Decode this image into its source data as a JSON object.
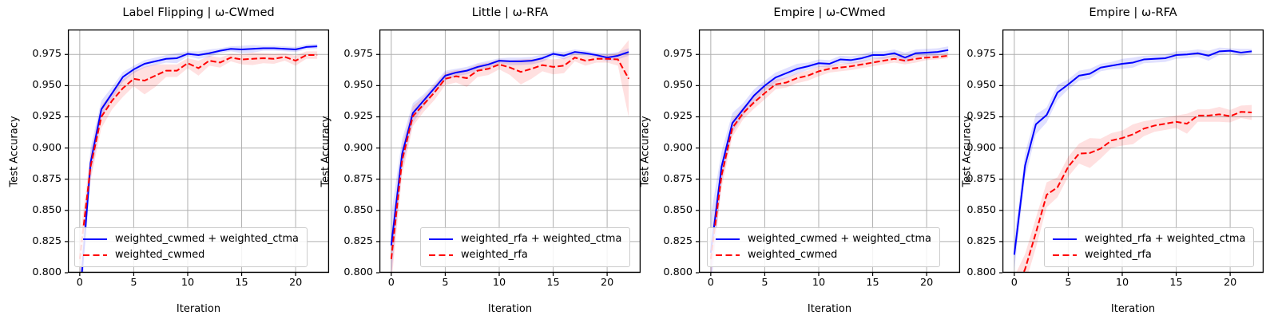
{
  "colors": {
    "blue": "#0000ff",
    "red": "#ff0000",
    "blue_band": "rgba(0,0,255,0.12)",
    "red_band": "rgba(255,0,0,0.12)",
    "grid": "#b0b0b0",
    "spine": "#000000",
    "background": "#ffffff"
  },
  "chart_data": [
    {
      "type": "line",
      "title": "Label Flipping | ω-CWmed",
      "xlabel": "Iteration",
      "ylabel": "Test Accuracy",
      "xlim": [
        -1.1,
        23.1
      ],
      "ylim": [
        0.8,
        0.995
      ],
      "xticks": [
        0,
        5,
        10,
        15,
        20
      ],
      "ytick_labels": [
        "0.800",
        "0.825",
        "0.850",
        "0.875",
        "0.900",
        "0.925",
        "0.950",
        "0.975"
      ],
      "grid": true,
      "legend_position": "lower left",
      "x": [
        0,
        1,
        2,
        3,
        4,
        5,
        6,
        7,
        8,
        9,
        10,
        11,
        12,
        13,
        14,
        15,
        16,
        17,
        18,
        19,
        20,
        21,
        22
      ],
      "series": [
        {
          "name": "weighted_cwmed + weighted_ctma",
          "color": "blue",
          "style": "solid",
          "values": [
            0.778,
            0.888,
            0.931,
            0.944,
            0.957,
            0.963,
            0.9675,
            0.9695,
            0.9715,
            0.972,
            0.9755,
            0.9745,
            0.976,
            0.978,
            0.9795,
            0.979,
            0.9795,
            0.98,
            0.98,
            0.9795,
            0.979,
            0.981,
            0.9815
          ],
          "band": [
            0.02,
            0.012,
            0.007,
            0.005,
            0.004,
            0.003,
            0.003,
            0.003,
            0.003,
            0.004,
            0.002,
            0.003,
            0.003,
            0.002,
            0.002,
            0.003,
            0.003,
            0.002,
            0.002,
            0.002,
            0.002,
            0.002,
            0.002
          ]
        },
        {
          "name": "weighted_cwmed",
          "color": "red",
          "style": "dashed",
          "values": [
            0.811,
            0.885,
            0.925,
            0.938,
            0.948,
            0.9555,
            0.954,
            0.958,
            0.962,
            0.962,
            0.968,
            0.964,
            0.97,
            0.9685,
            0.9725,
            0.971,
            0.9715,
            0.972,
            0.9715,
            0.973,
            0.97,
            0.9745,
            0.9745
          ],
          "band": [
            0.015,
            0.011,
            0.009,
            0.007,
            0.007,
            0.006,
            0.011,
            0.009,
            0.005,
            0.005,
            0.004,
            0.006,
            0.004,
            0.004,
            0.003,
            0.004,
            0.005,
            0.004,
            0.004,
            0.003,
            0.004,
            0.003,
            0.003
          ]
        }
      ]
    },
    {
      "type": "line",
      "title": "Little | ω-RFA",
      "xlabel": "Iteration",
      "ylabel": "Test Accuracy",
      "xlim": [
        -1.1,
        23.1
      ],
      "ylim": [
        0.8,
        0.995
      ],
      "xticks": [
        0,
        5,
        10,
        15,
        20
      ],
      "ytick_labels": [
        "0.800",
        "0.825",
        "0.850",
        "0.875",
        "0.900",
        "0.925",
        "0.950",
        "0.975"
      ],
      "grid": true,
      "legend_position": "lower left",
      "x": [
        0,
        1,
        2,
        3,
        4,
        5,
        6,
        7,
        8,
        9,
        10,
        11,
        12,
        13,
        14,
        15,
        16,
        17,
        18,
        19,
        20,
        21,
        22
      ],
      "series": [
        {
          "name": "weighted_rfa + weighted_ctma",
          "color": "blue",
          "style": "solid",
          "values": [
            0.822,
            0.895,
            0.928,
            0.938,
            0.948,
            0.958,
            0.9605,
            0.962,
            0.965,
            0.967,
            0.97,
            0.9695,
            0.9695,
            0.97,
            0.972,
            0.9755,
            0.974,
            0.977,
            0.976,
            0.9745,
            0.9725,
            0.974,
            0.977
          ],
          "band": [
            0.025,
            0.012,
            0.008,
            0.005,
            0.004,
            0.004,
            0.003,
            0.003,
            0.003,
            0.003,
            0.002,
            0.003,
            0.003,
            0.003,
            0.003,
            0.002,
            0.003,
            0.002,
            0.002,
            0.002,
            0.003,
            0.003,
            0.003
          ]
        },
        {
          "name": "weighted_rfa",
          "color": "red",
          "style": "dashed",
          "values": [
            0.811,
            0.89,
            0.9255,
            0.935,
            0.9445,
            0.9555,
            0.9575,
            0.956,
            0.962,
            0.9635,
            0.967,
            0.9645,
            0.961,
            0.9635,
            0.9665,
            0.965,
            0.966,
            0.9725,
            0.97,
            0.9715,
            0.9715,
            0.971,
            0.9555
          ],
          "band": [
            0.02,
            0.012,
            0.008,
            0.006,
            0.006,
            0.005,
            0.005,
            0.007,
            0.005,
            0.005,
            0.004,
            0.006,
            0.01,
            0.008,
            0.005,
            0.006,
            0.006,
            0.003,
            0.004,
            0.003,
            0.003,
            0.005,
            0.031
          ]
        }
      ]
    },
    {
      "type": "line",
      "title": "Empire | ω-CWmed",
      "xlabel": "Iteration",
      "ylabel": "Test Accuracy",
      "xlim": [
        -1.1,
        23.1
      ],
      "ylim": [
        0.8,
        0.995
      ],
      "xticks": [
        0,
        5,
        10,
        15,
        20
      ],
      "ytick_labels": [
        "0.800",
        "0.825",
        "0.850",
        "0.875",
        "0.900",
        "0.925",
        "0.950",
        "0.975"
      ],
      "grid": true,
      "legend_position": "lower left",
      "x": [
        0,
        1,
        2,
        3,
        4,
        5,
        6,
        7,
        8,
        9,
        10,
        11,
        12,
        13,
        14,
        15,
        16,
        17,
        18,
        19,
        20,
        21,
        22
      ],
      "series": [
        {
          "name": "weighted_cwmed + weighted_ctma",
          "color": "blue",
          "style": "solid",
          "values": [
            0.816,
            0.885,
            0.92,
            0.931,
            0.942,
            0.95,
            0.9565,
            0.96,
            0.9635,
            0.9655,
            0.968,
            0.9675,
            0.971,
            0.9705,
            0.972,
            0.9745,
            0.9745,
            0.976,
            0.9725,
            0.976,
            0.9765,
            0.977,
            0.9785
          ],
          "band": [
            0.03,
            0.012,
            0.008,
            0.005,
            0.005,
            0.004,
            0.004,
            0.004,
            0.004,
            0.003,
            0.003,
            0.003,
            0.003,
            0.003,
            0.003,
            0.003,
            0.003,
            0.003,
            0.004,
            0.003,
            0.003,
            0.003,
            0.003
          ]
        },
        {
          "name": "weighted_cwmed",
          "color": "red",
          "style": "dashed",
          "values": [
            0.811,
            0.878,
            0.916,
            0.928,
            0.9365,
            0.944,
            0.951,
            0.9525,
            0.956,
            0.958,
            0.9615,
            0.9635,
            0.9645,
            0.9655,
            0.967,
            0.9685,
            0.97,
            0.9715,
            0.97,
            0.9715,
            0.9725,
            0.973,
            0.974
          ],
          "band": [
            0.015,
            0.01,
            0.007,
            0.005,
            0.005,
            0.005,
            0.004,
            0.004,
            0.004,
            0.004,
            0.004,
            0.003,
            0.003,
            0.003,
            0.003,
            0.003,
            0.003,
            0.003,
            0.003,
            0.003,
            0.002,
            0.002,
            0.002
          ]
        }
      ]
    },
    {
      "type": "line",
      "title": "Empire | ω-RFA",
      "xlabel": "Iteration",
      "ylabel": "Test Accuracy",
      "xlim": [
        -1.1,
        23.1
      ],
      "ylim": [
        0.8,
        0.995
      ],
      "xticks": [
        0,
        5,
        10,
        15,
        20
      ],
      "ytick_labels": [
        "0.800",
        "0.825",
        "0.850",
        "0.875",
        "0.900",
        "0.925",
        "0.950",
        "0.975"
      ],
      "grid": true,
      "legend_position": "lower left",
      "x": [
        0,
        1,
        2,
        3,
        4,
        5,
        6,
        7,
        8,
        9,
        10,
        11,
        12,
        13,
        14,
        15,
        16,
        17,
        18,
        19,
        20,
        21,
        22
      ],
      "series": [
        {
          "name": "weighted_rfa + weighted_ctma",
          "color": "blue",
          "style": "solid",
          "values": [
            0.8145,
            0.886,
            0.919,
            0.9265,
            0.9445,
            0.951,
            0.958,
            0.9595,
            0.9645,
            0.966,
            0.9675,
            0.9685,
            0.971,
            0.9715,
            0.972,
            0.9745,
            0.975,
            0.976,
            0.974,
            0.9775,
            0.978,
            0.9765,
            0.9775
          ],
          "band": [
            0.012,
            0.01,
            0.008,
            0.006,
            0.006,
            0.004,
            0.004,
            0.004,
            0.003,
            0.003,
            0.004,
            0.004,
            0.003,
            0.003,
            0.003,
            0.003,
            0.003,
            0.003,
            0.004,
            0.003,
            0.002,
            0.003,
            0.002
          ]
        },
        {
          "name": "weighted_rfa",
          "color": "red",
          "style": "dashed",
          "values": [
            0.782,
            0.803,
            0.832,
            0.8625,
            0.8685,
            0.885,
            0.8955,
            0.896,
            0.8995,
            0.906,
            0.908,
            0.911,
            0.9155,
            0.918,
            0.9195,
            0.921,
            0.9195,
            0.926,
            0.926,
            0.927,
            0.9255,
            0.929,
            0.9285
          ],
          "band": [
            0.015,
            0.012,
            0.012,
            0.01,
            0.008,
            0.008,
            0.008,
            0.012,
            0.008,
            0.006,
            0.006,
            0.008,
            0.006,
            0.005,
            0.005,
            0.005,
            0.008,
            0.005,
            0.005,
            0.006,
            0.005,
            0.005,
            0.006
          ]
        }
      ]
    }
  ]
}
